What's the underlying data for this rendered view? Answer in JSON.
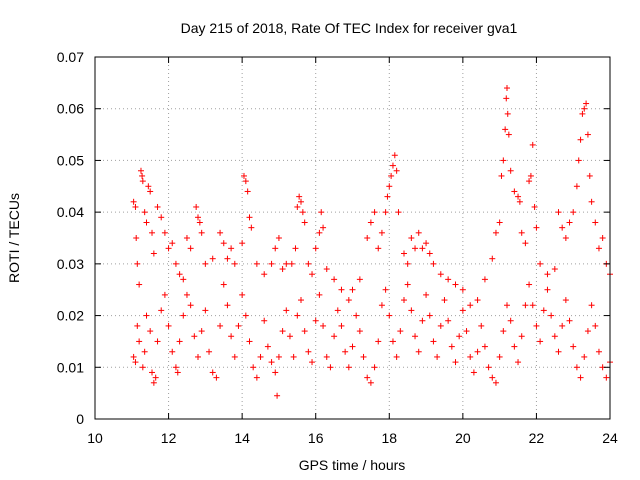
{
  "chart_data": {
    "type": "scatter",
    "title": "Day 215 of 2018, Rate Of TEC Index for receiver gva1",
    "xlabel": "GPS time / hours",
    "ylabel": "ROTI / TECUs",
    "xlim": [
      10,
      24
    ],
    "ylim": [
      0,
      0.07
    ],
    "xticks": [
      10,
      12,
      14,
      16,
      18,
      20,
      22,
      24
    ],
    "yticks": [
      0,
      0.01,
      0.02,
      0.03,
      0.04,
      0.05,
      0.06,
      0.07
    ],
    "xtick_labels": [
      "10",
      "12",
      "14",
      "16",
      "18",
      "20",
      "22",
      "24"
    ],
    "ytick_labels": [
      "0",
      "0.01",
      "0.02",
      "0.03",
      "0.04",
      "0.05",
      "0.06",
      "0.07"
    ],
    "grid": true,
    "marker": "+",
    "color": "#ff0000",
    "x_range_of_data": [
      11.0,
      24.0
    ],
    "series": [
      {
        "name": "gva1",
        "points": [
          [
            11.05,
            0.042
          ],
          [
            11.1,
            0.041
          ],
          [
            11.12,
            0.035
          ],
          [
            11.15,
            0.03
          ],
          [
            11.2,
            0.026
          ],
          [
            11.25,
            0.048
          ],
          [
            11.28,
            0.047
          ],
          [
            11.3,
            0.046
          ],
          [
            11.35,
            0.04
          ],
          [
            11.4,
            0.038
          ],
          [
            11.45,
            0.045
          ],
          [
            11.5,
            0.044
          ],
          [
            11.55,
            0.036
          ],
          [
            11.6,
            0.032
          ],
          [
            11.7,
            0.041
          ],
          [
            11.8,
            0.039
          ],
          [
            11.9,
            0.036
          ],
          [
            12.0,
            0.033
          ],
          [
            12.1,
            0.034
          ],
          [
            12.2,
            0.03
          ],
          [
            12.3,
            0.028
          ],
          [
            12.4,
            0.027
          ],
          [
            12.5,
            0.035
          ],
          [
            12.6,
            0.033
          ],
          [
            12.75,
            0.041
          ],
          [
            12.8,
            0.039
          ],
          [
            12.85,
            0.038
          ],
          [
            12.9,
            0.036
          ],
          [
            13.0,
            0.03
          ],
          [
            13.2,
            0.031
          ],
          [
            13.4,
            0.036
          ],
          [
            13.5,
            0.034
          ],
          [
            13.6,
            0.031
          ],
          [
            13.7,
            0.033
          ],
          [
            13.8,
            0.03
          ],
          [
            14.0,
            0.034
          ],
          [
            14.05,
            0.047
          ],
          [
            14.1,
            0.046
          ],
          [
            14.15,
            0.044
          ],
          [
            14.2,
            0.039
          ],
          [
            14.25,
            0.037
          ],
          [
            14.4,
            0.03
          ],
          [
            14.6,
            0.028
          ],
          [
            14.8,
            0.03
          ],
          [
            14.9,
            0.033
          ],
          [
            15.0,
            0.035
          ],
          [
            15.1,
            0.029
          ],
          [
            15.2,
            0.03
          ],
          [
            15.35,
            0.03
          ],
          [
            15.45,
            0.033
          ],
          [
            15.5,
            0.041
          ],
          [
            15.55,
            0.043
          ],
          [
            15.6,
            0.042
          ],
          [
            15.65,
            0.04
          ],
          [
            15.7,
            0.038
          ],
          [
            15.8,
            0.03
          ],
          [
            15.9,
            0.028
          ],
          [
            16.0,
            0.033
          ],
          [
            16.1,
            0.036
          ],
          [
            16.15,
            0.04
          ],
          [
            16.2,
            0.037
          ],
          [
            16.3,
            0.029
          ],
          [
            16.5,
            0.027
          ],
          [
            16.7,
            0.025
          ],
          [
            16.9,
            0.023
          ],
          [
            17.0,
            0.025
          ],
          [
            17.2,
            0.027
          ],
          [
            17.4,
            0.035
          ],
          [
            17.5,
            0.038
          ],
          [
            17.6,
            0.04
          ],
          [
            17.7,
            0.033
          ],
          [
            17.8,
            0.036
          ],
          [
            17.9,
            0.04
          ],
          [
            17.95,
            0.043
          ],
          [
            18.0,
            0.045
          ],
          [
            18.05,
            0.047
          ],
          [
            18.1,
            0.049
          ],
          [
            18.15,
            0.051
          ],
          [
            18.2,
            0.048
          ],
          [
            18.25,
            0.04
          ],
          [
            18.4,
            0.032
          ],
          [
            18.5,
            0.03
          ],
          [
            18.6,
            0.035
          ],
          [
            18.7,
            0.033
          ],
          [
            18.8,
            0.036
          ],
          [
            18.9,
            0.033
          ],
          [
            19.0,
            0.034
          ],
          [
            19.1,
            0.032
          ],
          [
            19.2,
            0.03
          ],
          [
            19.4,
            0.028
          ],
          [
            19.6,
            0.027
          ],
          [
            19.8,
            0.026
          ],
          [
            20.0,
            0.025
          ],
          [
            20.2,
            0.022
          ],
          [
            20.4,
            0.023
          ],
          [
            20.6,
            0.027
          ],
          [
            20.8,
            0.031
          ],
          [
            20.9,
            0.036
          ],
          [
            21.0,
            0.038
          ],
          [
            21.05,
            0.047
          ],
          [
            21.1,
            0.05
          ],
          [
            21.15,
            0.056
          ],
          [
            21.18,
            0.062
          ],
          [
            21.2,
            0.064
          ],
          [
            21.22,
            0.059
          ],
          [
            21.25,
            0.055
          ],
          [
            21.3,
            0.048
          ],
          [
            21.4,
            0.044
          ],
          [
            21.5,
            0.043
          ],
          [
            21.55,
            0.042
          ],
          [
            21.6,
            0.036
          ],
          [
            21.7,
            0.034
          ],
          [
            21.8,
            0.046
          ],
          [
            21.85,
            0.047
          ],
          [
            21.9,
            0.053
          ],
          [
            21.95,
            0.041
          ],
          [
            22.0,
            0.037
          ],
          [
            22.1,
            0.03
          ],
          [
            22.3,
            0.028
          ],
          [
            22.5,
            0.029
          ],
          [
            22.6,
            0.04
          ],
          [
            22.7,
            0.037
          ],
          [
            22.8,
            0.035
          ],
          [
            22.9,
            0.038
          ],
          [
            23.0,
            0.04
          ],
          [
            23.1,
            0.045
          ],
          [
            23.15,
            0.05
          ],
          [
            23.2,
            0.054
          ],
          [
            23.25,
            0.059
          ],
          [
            23.3,
            0.06
          ],
          [
            23.35,
            0.061
          ],
          [
            23.4,
            0.055
          ],
          [
            23.45,
            0.047
          ],
          [
            23.5,
            0.042
          ],
          [
            23.6,
            0.038
          ],
          [
            23.7,
            0.033
          ],
          [
            23.8,
            0.035
          ],
          [
            23.9,
            0.03
          ],
          [
            24.0,
            0.028
          ],
          [
            11.05,
            0.012
          ],
          [
            11.1,
            0.011
          ],
          [
            11.15,
            0.018
          ],
          [
            11.2,
            0.015
          ],
          [
            11.3,
            0.01
          ],
          [
            11.35,
            0.013
          ],
          [
            11.4,
            0.02
          ],
          [
            11.5,
            0.017
          ],
          [
            11.55,
            0.009
          ],
          [
            11.6,
            0.007
          ],
          [
            11.65,
            0.008
          ],
          [
            11.7,
            0.015
          ],
          [
            11.8,
            0.021
          ],
          [
            11.9,
            0.024
          ],
          [
            12.0,
            0.018
          ],
          [
            12.1,
            0.013
          ],
          [
            12.2,
            0.01
          ],
          [
            12.25,
            0.009
          ],
          [
            12.3,
            0.015
          ],
          [
            12.4,
            0.02
          ],
          [
            12.5,
            0.024
          ],
          [
            12.6,
            0.022
          ],
          [
            12.7,
            0.016
          ],
          [
            12.8,
            0.012
          ],
          [
            12.9,
            0.017
          ],
          [
            13.0,
            0.021
          ],
          [
            13.1,
            0.013
          ],
          [
            13.2,
            0.009
          ],
          [
            13.3,
            0.008
          ],
          [
            13.4,
            0.018
          ],
          [
            13.5,
            0.026
          ],
          [
            13.6,
            0.022
          ],
          [
            13.7,
            0.016
          ],
          [
            13.8,
            0.012
          ],
          [
            13.9,
            0.018
          ],
          [
            14.0,
            0.024
          ],
          [
            14.1,
            0.02
          ],
          [
            14.2,
            0.015
          ],
          [
            14.3,
            0.01
          ],
          [
            14.4,
            0.008
          ],
          [
            14.5,
            0.012
          ],
          [
            14.6,
            0.019
          ],
          [
            14.7,
            0.014
          ],
          [
            14.8,
            0.011
          ],
          [
            14.9,
            0.009
          ],
          [
            14.95,
            0.0045
          ],
          [
            15.0,
            0.012
          ],
          [
            15.1,
            0.017
          ],
          [
            15.2,
            0.021
          ],
          [
            15.3,
            0.016
          ],
          [
            15.4,
            0.012
          ],
          [
            15.5,
            0.02
          ],
          [
            15.6,
            0.023
          ],
          [
            15.7,
            0.017
          ],
          [
            15.8,
            0.013
          ],
          [
            15.9,
            0.011
          ],
          [
            16.0,
            0.019
          ],
          [
            16.1,
            0.024
          ],
          [
            16.2,
            0.018
          ],
          [
            16.3,
            0.012
          ],
          [
            16.4,
            0.01
          ],
          [
            16.5,
            0.016
          ],
          [
            16.6,
            0.021
          ],
          [
            16.7,
            0.018
          ],
          [
            16.8,
            0.013
          ],
          [
            16.9,
            0.01
          ],
          [
            17.0,
            0.014
          ],
          [
            17.1,
            0.02
          ],
          [
            17.2,
            0.017
          ],
          [
            17.3,
            0.012
          ],
          [
            17.4,
            0.008
          ],
          [
            17.5,
            0.007
          ],
          [
            17.6,
            0.01
          ],
          [
            17.7,
            0.015
          ],
          [
            17.8,
            0.022
          ],
          [
            17.9,
            0.025
          ],
          [
            18.0,
            0.02
          ],
          [
            18.1,
            0.015
          ],
          [
            18.2,
            0.012
          ],
          [
            18.3,
            0.017
          ],
          [
            18.4,
            0.023
          ],
          [
            18.5,
            0.026
          ],
          [
            18.6,
            0.021
          ],
          [
            18.7,
            0.016
          ],
          [
            18.8,
            0.013
          ],
          [
            18.9,
            0.019
          ],
          [
            19.0,
            0.024
          ],
          [
            19.1,
            0.02
          ],
          [
            19.2,
            0.015
          ],
          [
            19.3,
            0.012
          ],
          [
            19.4,
            0.018
          ],
          [
            19.5,
            0.023
          ],
          [
            19.6,
            0.019
          ],
          [
            19.7,
            0.014
          ],
          [
            19.8,
            0.011
          ],
          [
            19.9,
            0.016
          ],
          [
            20.0,
            0.021
          ],
          [
            20.1,
            0.017
          ],
          [
            20.2,
            0.012
          ],
          [
            20.3,
            0.009
          ],
          [
            20.4,
            0.013
          ],
          [
            20.5,
            0.018
          ],
          [
            20.6,
            0.014
          ],
          [
            20.7,
            0.01
          ],
          [
            20.8,
            0.008
          ],
          [
            20.9,
            0.007
          ],
          [
            21.0,
            0.012
          ],
          [
            21.1,
            0.017
          ],
          [
            21.2,
            0.022
          ],
          [
            21.3,
            0.019
          ],
          [
            21.4,
            0.014
          ],
          [
            21.5,
            0.011
          ],
          [
            21.6,
            0.016
          ],
          [
            21.7,
            0.022
          ],
          [
            21.8,
            0.026
          ],
          [
            21.9,
            0.022
          ],
          [
            22.0,
            0.018
          ],
          [
            22.1,
            0.015
          ],
          [
            22.2,
            0.021
          ],
          [
            22.3,
            0.025
          ],
          [
            22.4,
            0.02
          ],
          [
            22.5,
            0.016
          ],
          [
            22.6,
            0.013
          ],
          [
            22.7,
            0.018
          ],
          [
            22.8,
            0.023
          ],
          [
            22.9,
            0.019
          ],
          [
            23.0,
            0.014
          ],
          [
            23.1,
            0.01
          ],
          [
            23.2,
            0.008
          ],
          [
            23.3,
            0.012
          ],
          [
            23.4,
            0.017
          ],
          [
            23.5,
            0.022
          ],
          [
            23.6,
            0.018
          ],
          [
            23.7,
            0.013
          ],
          [
            23.8,
            0.01
          ],
          [
            23.9,
            0.008
          ],
          [
            24.0,
            0.011
          ]
        ]
      }
    ]
  }
}
